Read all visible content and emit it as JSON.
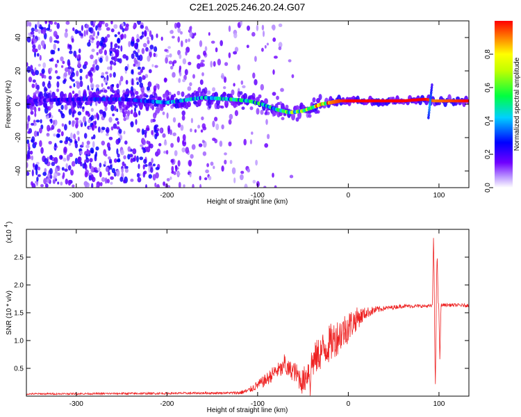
{
  "title": "C2E1.2025.246.20.24.G07",
  "chart_data": [
    {
      "type": "heatmap",
      "name": "spectrogram",
      "xlabel": "Height of straight line (km)",
      "ylabel": "Frequency (Hz)",
      "xlim": [
        -355,
        133
      ],
      "ylim": [
        -50,
        50
      ],
      "xticks": [
        -300,
        -200,
        -100,
        0,
        100
      ],
      "xtick_labels": [
        "-300",
        "-200",
        "-100",
        "0",
        "100"
      ],
      "yticks": [
        -40,
        -20,
        0,
        20,
        40
      ],
      "ytick_labels": [
        "-40",
        "-20",
        "0",
        "20",
        "40"
      ],
      "colorbar": {
        "label": "Normalized spectral amplitude",
        "range": [
          0,
          1
        ],
        "ticks": [
          0.0,
          0.2,
          0.4,
          0.6,
          0.8
        ],
        "tick_labels": [
          "0.0",
          "0.2",
          "0.4",
          "0.6",
          "0.8"
        ]
      },
      "ridge": {
        "x": [
          -355,
          -300,
          -250,
          -200,
          -160,
          -130,
          -110,
          -95,
          -80,
          -65,
          -50,
          -40,
          -30,
          -20,
          -10,
          0,
          20,
          60,
          85,
          95,
          133
        ],
        "freq": [
          2,
          3,
          3,
          1,
          4,
          3,
          2,
          0,
          -3,
          -5,
          -4,
          -2,
          0,
          1,
          2,
          2,
          2,
          2,
          3,
          2,
          2
        ],
        "amplitude": [
          0.2,
          0.25,
          0.3,
          0.4,
          0.45,
          0.5,
          0.55,
          0.55,
          0.5,
          0.6,
          0.7,
          0.8,
          0.85,
          0.9,
          0.95,
          1.0,
          1.0,
          1.0,
          1.0,
          0.9,
          1.0
        ]
      },
      "noise_extent_km": -60,
      "noise_dense_extent_km": -210
    },
    {
      "type": "line",
      "name": "snr",
      "xlabel": "Height of straight line (km)",
      "ylabel": "SNR (10 * v/v)",
      "yscale_label": "(x10",
      "yscale_exponent": "4",
      "xlim": [
        -355,
        133
      ],
      "ylim": [
        0,
        3.0
      ],
      "xticks": [
        -300,
        -200,
        -100,
        0,
        100
      ],
      "xtick_labels": [
        "-300",
        "-200",
        "-100",
        "0",
        "100"
      ],
      "yticks": [
        0.5,
        1.0,
        1.5,
        2.0,
        2.5
      ],
      "ytick_labels": [
        "0.5",
        "1.0",
        "1.5",
        "2.0",
        "2.5"
      ],
      "color": "#ee2222",
      "envelope": {
        "x": [
          -355,
          -200,
          -120,
          -110,
          -100,
          -90,
          -80,
          -70,
          -60,
          -50,
          -40,
          -30,
          -20,
          -10,
          0,
          10,
          20,
          30,
          40,
          60,
          80,
          90,
          100,
          110,
          133
        ],
        "y": [
          0.04,
          0.05,
          0.06,
          0.1,
          0.2,
          0.3,
          0.45,
          0.5,
          0.45,
          0.25,
          0.6,
          0.8,
          0.95,
          1.1,
          1.25,
          1.4,
          1.5,
          1.55,
          1.58,
          1.62,
          1.62,
          1.62,
          1.64,
          1.64,
          1.63
        ]
      },
      "noise_amplitude": {
        "x": [
          -355,
          -130,
          -110,
          -90,
          -60,
          -40,
          -20,
          0,
          20,
          40,
          85,
          133
        ],
        "y": [
          0.015,
          0.02,
          0.05,
          0.12,
          0.18,
          0.3,
          0.35,
          0.3,
          0.1,
          0.04,
          0.03,
          0.03
        ]
      },
      "spikes": [
        {
          "x": -70,
          "y": 0.68
        },
        {
          "x": -42,
          "y": 0.22
        },
        {
          "x": 94,
          "y": 2.9
        },
        {
          "x": 96,
          "y": 0.15
        },
        {
          "x": 98,
          "y": 2.6
        },
        {
          "x": 101,
          "y": 0.6
        }
      ]
    }
  ]
}
